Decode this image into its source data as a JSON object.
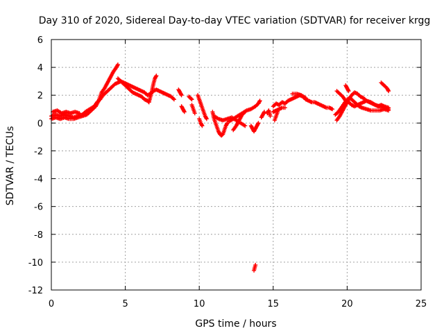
{
  "chart_data": {
    "type": "scatter",
    "title": "Day 310 of 2020, Sidereal Day-to-day VTEC variation (SDTVAR) for receiver krgg",
    "xlabel": "GPS time / hours",
    "ylabel": "SDTVAR / TECUs",
    "xlim": [
      0,
      25
    ],
    "ylim": [
      -12,
      6
    ],
    "xticks": [
      "0",
      "5",
      "10",
      "15",
      "20",
      "25"
    ],
    "yticks": [
      "6",
      "4",
      "2",
      "0",
      "-2",
      "-4",
      "-6",
      "-8",
      "-10",
      "-12"
    ],
    "grid": true,
    "marker": "+",
    "series": [
      {
        "name": "SDTVAR",
        "color": "#ff0000",
        "segments": [
          [
            [
              0.0,
              0.5
            ],
            [
              0.3,
              0.6
            ],
            [
              0.6,
              0.5
            ],
            [
              0.9,
              0.6
            ],
            [
              1.2,
              0.5
            ],
            [
              1.5,
              0.4
            ],
            [
              1.8,
              0.5
            ],
            [
              2.1,
              0.6
            ],
            [
              2.3,
              0.8
            ],
            [
              2.6,
              1.0
            ],
            [
              2.9,
              1.2
            ],
            [
              3.1,
              1.5
            ],
            [
              3.3,
              1.7
            ],
            [
              3.5,
              2.0
            ],
            [
              3.7,
              2.2
            ],
            [
              3.9,
              2.4
            ],
            [
              4.1,
              2.6
            ],
            [
              4.3,
              2.8
            ],
            [
              4.5,
              2.9
            ],
            [
              4.7,
              3.0
            ],
            [
              4.9,
              2.9
            ],
            [
              5.1,
              2.8
            ],
            [
              5.3,
              2.7
            ],
            [
              5.5,
              2.6
            ],
            [
              5.7,
              2.5
            ],
            [
              5.9,
              2.4
            ],
            [
              6.1,
              2.3
            ],
            [
              6.3,
              2.2
            ],
            [
              6.5,
              2.0
            ],
            [
              6.7,
              2.1
            ],
            [
              6.9,
              2.3
            ],
            [
              7.1,
              2.4
            ],
            [
              7.3,
              2.3
            ],
            [
              7.5,
              2.2
            ],
            [
              7.7,
              2.1
            ],
            [
              7.9,
              2.0
            ],
            [
              8.1,
              1.9
            ],
            [
              8.3,
              1.7
            ]
          ],
          [
            [
              0.0,
              0.3
            ],
            [
              0.3,
              0.4
            ],
            [
              0.6,
              0.3
            ],
            [
              0.9,
              0.4
            ],
            [
              1.2,
              0.3
            ],
            [
              1.5,
              0.3
            ],
            [
              1.8,
              0.4
            ],
            [
              2.1,
              0.5
            ],
            [
              2.4,
              0.6
            ],
            [
              2.7,
              0.9
            ],
            [
              3.0,
              1.2
            ],
            [
              3.2,
              1.6
            ],
            [
              3.4,
              2.2
            ],
            [
              3.6,
              2.5
            ],
            [
              3.8,
              2.9
            ],
            [
              4.0,
              3.3
            ],
            [
              4.2,
              3.7
            ],
            [
              4.4,
              4.0
            ],
            [
              4.5,
              4.2
            ]
          ],
          [
            [
              0.1,
              0.8
            ],
            [
              0.4,
              0.9
            ],
            [
              0.7,
              0.7
            ],
            [
              1.0,
              0.8
            ],
            [
              1.3,
              0.7
            ],
            [
              1.6,
              0.8
            ],
            [
              1.9,
              0.7
            ]
          ],
          [
            [
              4.5,
              3.2
            ],
            [
              4.7,
              3.0
            ],
            [
              4.9,
              2.8
            ],
            [
              5.1,
              2.6
            ],
            [
              5.3,
              2.4
            ],
            [
              5.5,
              2.2
            ],
            [
              5.7,
              2.1
            ],
            [
              5.9,
              2.0
            ],
            [
              6.1,
              1.9
            ],
            [
              6.3,
              1.7
            ],
            [
              6.5,
              1.6
            ],
            [
              6.6,
              1.5
            ]
          ],
          [
            [
              6.6,
              1.5
            ],
            [
              6.7,
              1.9
            ],
            [
              6.8,
              2.3
            ],
            [
              6.9,
              2.8
            ],
            [
              7.0,
              3.2
            ],
            [
              7.1,
              3.4
            ]
          ],
          [
            [
              8.6,
              2.4
            ],
            [
              8.7,
              2.2
            ],
            [
              8.8,
              2.0
            ]
          ],
          [
            [
              8.8,
              1.2
            ],
            [
              8.9,
              1.0
            ],
            [
              9.0,
              0.8
            ]
          ],
          [
            [
              9.3,
              1.9
            ],
            [
              9.4,
              1.8
            ],
            [
              9.5,
              1.7
            ]
          ],
          [
            [
              9.5,
              1.3
            ],
            [
              9.6,
              1.0
            ],
            [
              9.7,
              0.7
            ]
          ],
          [
            [
              9.9,
              2.0
            ],
            [
              10.0,
              1.7
            ],
            [
              10.1,
              1.4
            ],
            [
              10.2,
              1.1
            ],
            [
              10.3,
              0.8
            ],
            [
              10.4,
              0.5
            ],
            [
              10.5,
              0.3
            ]
          ],
          [
            [
              10.0,
              0.3
            ],
            [
              10.1,
              0.0
            ],
            [
              10.2,
              -0.2
            ]
          ],
          [
            [
              10.9,
              0.8
            ],
            [
              11.0,
              0.3
            ],
            [
              11.1,
              0.0
            ],
            [
              11.2,
              -0.3
            ],
            [
              11.3,
              -0.6
            ],
            [
              11.4,
              -0.8
            ],
            [
              11.5,
              -0.9
            ],
            [
              11.6,
              -0.8
            ],
            [
              11.7,
              -0.5
            ],
            [
              11.8,
              -0.2
            ],
            [
              11.9,
              0.0
            ]
          ],
          [
            [
              11.0,
              0.5
            ],
            [
              11.3,
              0.3
            ],
            [
              11.6,
              0.2
            ],
            [
              11.9,
              0.3
            ],
            [
              12.2,
              0.4
            ],
            [
              12.5,
              0.2
            ],
            [
              12.8,
              0.0
            ],
            [
              13.1,
              -0.2
            ]
          ],
          [
            [
              12.0,
              0.1
            ],
            [
              12.3,
              0.3
            ],
            [
              12.6,
              0.5
            ],
            [
              12.9,
              0.7
            ],
            [
              13.2,
              0.9
            ],
            [
              13.5,
              1.0
            ],
            [
              13.8,
              1.2
            ],
            [
              14.0,
              1.4
            ],
            [
              14.1,
              1.6
            ]
          ],
          [
            [
              12.3,
              -0.5
            ],
            [
              12.5,
              -0.2
            ],
            [
              12.7,
              0.2
            ],
            [
              12.9,
              0.6
            ],
            [
              13.1,
              0.8
            ]
          ],
          [
            [
              13.5,
              -0.2
            ],
            [
              13.6,
              -0.4
            ],
            [
              13.7,
              -0.6
            ],
            [
              13.8,
              -0.4
            ],
            [
              13.9,
              -0.2
            ],
            [
              14.0,
              0.0
            ]
          ],
          [
            [
              13.7,
              -10.6
            ],
            [
              13.75,
              -10.4
            ],
            [
              13.8,
              -10.2
            ]
          ],
          [
            [
              14.2,
              0.4
            ],
            [
              14.3,
              0.6
            ],
            [
              14.4,
              0.8
            ]
          ],
          [
            [
              14.6,
              0.7
            ],
            [
              14.7,
              0.9
            ],
            [
              14.8,
              0.5
            ]
          ],
          [
            [
              15.0,
              1.2
            ],
            [
              15.2,
              1.4
            ],
            [
              15.4,
              1.3
            ],
            [
              15.6,
              1.5
            ],
            [
              15.8,
              1.4
            ],
            [
              16.0,
              1.6
            ],
            [
              16.2,
              1.7
            ],
            [
              16.4,
              1.8
            ],
            [
              16.6,
              1.9
            ],
            [
              16.8,
              2.0
            ],
            [
              17.0,
              1.9
            ],
            [
              17.2,
              1.7
            ],
            [
              17.4,
              1.6
            ],
            [
              17.6,
              1.5
            ],
            [
              17.8,
              1.5
            ],
            [
              18.0,
              1.4
            ],
            [
              18.2,
              1.3
            ],
            [
              18.4,
              1.2
            ],
            [
              18.6,
              1.1
            ],
            [
              18.8,
              1.1
            ],
            [
              19.0,
              1.0
            ]
          ],
          [
            [
              15.0,
              0.8
            ],
            [
              15.2,
              0.9
            ],
            [
              15.4,
              1.0
            ],
            [
              15.6,
              1.1
            ],
            [
              15.8,
              1.1
            ]
          ],
          [
            [
              15.1,
              0.2
            ],
            [
              15.2,
              0.5
            ],
            [
              15.3,
              0.8
            ]
          ],
          [
            [
              16.3,
              2.1
            ],
            [
              16.6,
              2.1
            ],
            [
              16.9,
              2.0
            ],
            [
              17.2,
              1.8
            ]
          ],
          [
            [
              19.2,
              0.6
            ],
            [
              19.4,
              0.8
            ],
            [
              19.6,
              1.1
            ],
            [
              19.8,
              1.4
            ],
            [
              20.0,
              1.7
            ],
            [
              20.2,
              1.8
            ],
            [
              20.4,
              1.6
            ],
            [
              20.6,
              1.4
            ],
            [
              20.8,
              1.2
            ],
            [
              21.0,
              1.1
            ],
            [
              21.3,
              1.0
            ],
            [
              21.6,
              0.9
            ],
            [
              21.9,
              0.9
            ],
            [
              22.2,
              0.9
            ],
            [
              22.5,
              1.0
            ],
            [
              22.8,
              0.9
            ]
          ],
          [
            [
              19.3,
              0.2
            ],
            [
              19.5,
              0.5
            ],
            [
              19.7,
              0.9
            ],
            [
              19.9,
              1.3
            ],
            [
              20.1,
              1.7
            ],
            [
              20.3,
              2.0
            ],
            [
              20.5,
              2.2
            ],
            [
              20.7,
              2.1
            ],
            [
              20.9,
              1.9
            ],
            [
              21.1,
              1.8
            ],
            [
              21.3,
              1.6
            ],
            [
              21.6,
              1.5
            ],
            [
              21.9,
              1.3
            ],
            [
              22.2,
              1.2
            ],
            [
              22.5,
              1.1
            ],
            [
              22.8,
              1.0
            ]
          ],
          [
            [
              19.3,
              2.3
            ],
            [
              19.5,
              2.1
            ],
            [
              19.7,
              1.9
            ],
            [
              19.9,
              1.6
            ],
            [
              20.1,
              1.5
            ],
            [
              20.3,
              1.3
            ],
            [
              20.5,
              1.2
            ],
            [
              20.7,
              1.3
            ],
            [
              20.9,
              1.4
            ],
            [
              21.1,
              1.5
            ],
            [
              21.3,
              1.6
            ],
            [
              21.5,
              1.5
            ],
            [
              21.7,
              1.4
            ],
            [
              21.9,
              1.3
            ],
            [
              22.1,
              1.2
            ],
            [
              22.3,
              1.3
            ],
            [
              22.5,
              1.2
            ],
            [
              22.8,
              1.1
            ]
          ],
          [
            [
              19.9,
              2.7
            ],
            [
              20.0,
              2.5
            ],
            [
              20.1,
              2.3
            ]
          ],
          [
            [
              22.3,
              2.9
            ],
            [
              22.5,
              2.7
            ],
            [
              22.7,
              2.5
            ],
            [
              22.8,
              2.3
            ]
          ]
        ]
      }
    ]
  }
}
